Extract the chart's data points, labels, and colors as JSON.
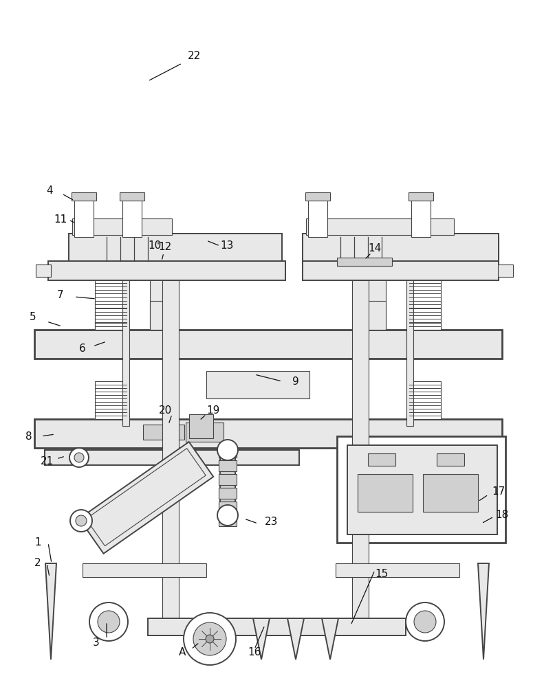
{
  "bg_color": "#ffffff",
  "lc": "#444444",
  "lc_dark": "#222222",
  "lw_main": 1.4,
  "lw_thin": 0.8,
  "lw_thick": 2.0,
  "label_fs": 11,
  "gray_light": "#e8e8e8",
  "gray_mid": "#d0d0d0",
  "gray_dark": "#aaaaaa",
  "white": "#ffffff"
}
